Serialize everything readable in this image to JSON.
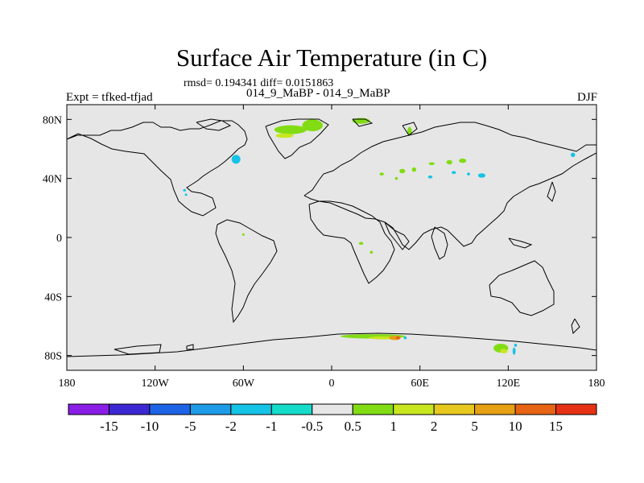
{
  "title": "Surface Air Temperature (in C)",
  "stats_text": "rmsd= 0.194341 diff= 0.0151863",
  "case_text": "014_9_MaBP - 014_9_MaBP",
  "expt_text": "Expt = tfked-tfjad",
  "season_text": "DJF",
  "chart_data": {
    "type": "heatmap",
    "projection": "cylindrical-equidistant",
    "xlim": [
      -180,
      180
    ],
    "ylim": [
      -90,
      90
    ],
    "x_ticks": [
      {
        "value": -180,
        "label": "180"
      },
      {
        "value": -120,
        "label": "120W"
      },
      {
        "value": -60,
        "label": "60W"
      },
      {
        "value": 0,
        "label": "0"
      },
      {
        "value": 60,
        "label": "60E"
      },
      {
        "value": 120,
        "label": "120E"
      },
      {
        "value": 180,
        "label": "180"
      }
    ],
    "y_ticks": [
      {
        "value": 80,
        "label": "80N"
      },
      {
        "value": 40,
        "label": "40N"
      },
      {
        "value": 0,
        "label": "0"
      },
      {
        "value": -40,
        "label": "40S"
      },
      {
        "value": -80,
        "label": "80S"
      }
    ],
    "background_color": "#e6e6e6",
    "colorbar": {
      "colors": [
        "#8a1ee6",
        "#3c28d2",
        "#1e64e6",
        "#1e9be6",
        "#14c3e6",
        "#14dcc8",
        "#e6e6e6",
        "#82dc14",
        "#c8e61e",
        "#e6c81e",
        "#e6a014",
        "#e66414",
        "#e63214"
      ],
      "labels": [
        "-15",
        "-10",
        "-5",
        "-2",
        "-1",
        "-0.5",
        "0.5",
        "1",
        "2",
        "5",
        "10",
        "15"
      ]
    },
    "anomalies": [
      {
        "lon": -28,
        "lat": 73,
        "w": 22,
        "h": 6,
        "color": "#82dc14"
      },
      {
        "lon": -13,
        "lat": 76,
        "w": 14,
        "h": 8,
        "color": "#82dc14"
      },
      {
        "lon": -32,
        "lat": 69,
        "w": 12,
        "h": 3,
        "color": "#c8e61e"
      },
      {
        "lon": 20,
        "lat": 79,
        "w": 12,
        "h": 4,
        "color": "#82dc14"
      },
      {
        "lon": 53,
        "lat": 72,
        "w": 3,
        "h": 6,
        "color": "#82dc14"
      },
      {
        "lon": -65,
        "lat": 53,
        "w": 6,
        "h": 6,
        "color": "#14c3e6"
      },
      {
        "lon": 89,
        "lat": 52,
        "w": 5,
        "h": 3,
        "color": "#82dc14"
      },
      {
        "lon": 80,
        "lat": 51,
        "w": 4,
        "h": 3,
        "color": "#82dc14"
      },
      {
        "lon": 68,
        "lat": 50,
        "w": 4,
        "h": 2,
        "color": "#82dc14"
      },
      {
        "lon": 56,
        "lat": 46,
        "w": 3,
        "h": 3,
        "color": "#82dc14"
      },
      {
        "lon": 48,
        "lat": 45,
        "w": 4,
        "h": 3,
        "color": "#82dc14"
      },
      {
        "lon": 34,
        "lat": 43,
        "w": 3,
        "h": 2,
        "color": "#82dc14"
      },
      {
        "lon": 44,
        "lat": 40,
        "w": 2,
        "h": 2,
        "color": "#82dc14"
      },
      {
        "lon": 67,
        "lat": 41,
        "w": 3,
        "h": 2,
        "color": "#14c3e6"
      },
      {
        "lon": 83,
        "lat": 44,
        "w": 3,
        "h": 2,
        "color": "#14c3e6"
      },
      {
        "lon": 93,
        "lat": 43,
        "w": 2,
        "h": 2,
        "color": "#14c3e6"
      },
      {
        "lon": 102,
        "lat": 42,
        "w": 5,
        "h": 3,
        "color": "#14c3e6"
      },
      {
        "lon": 164,
        "lat": 56,
        "w": 3,
        "h": 3,
        "color": "#14c3e6"
      },
      {
        "lon": -100,
        "lat": 32,
        "w": 2,
        "h": 1,
        "color": "#14c3e6"
      },
      {
        "lon": -99,
        "lat": 29,
        "w": 1,
        "h": 1,
        "color": "#14c3e6"
      },
      {
        "lon": -60,
        "lat": 2,
        "w": 1,
        "h": 1,
        "color": "#82dc14"
      },
      {
        "lon": 20,
        "lat": -4,
        "w": 3,
        "h": 2,
        "color": "#82dc14"
      },
      {
        "lon": 27,
        "lat": -10,
        "w": 2,
        "h": 2,
        "color": "#82dc14"
      },
      {
        "lon": 28,
        "lat": -67,
        "w": 44,
        "h": 3,
        "color": "#82dc14"
      },
      {
        "lon": 35,
        "lat": -68,
        "w": 20,
        "h": 2,
        "color": "#c8e61e"
      },
      {
        "lon": 43,
        "lat": -68,
        "w": 8,
        "h": 3,
        "color": "#e6a014"
      },
      {
        "lon": 45,
        "lat": -68,
        "w": 3,
        "h": 2,
        "color": "#e66414"
      },
      {
        "lon": 50,
        "lat": -68,
        "w": 2,
        "h": 2,
        "color": "#14c3e6"
      },
      {
        "lon": 115,
        "lat": -75,
        "w": 10,
        "h": 6,
        "color": "#82dc14"
      },
      {
        "lon": 117,
        "lat": -77,
        "w": 5,
        "h": 3,
        "color": "#c8e61e"
      },
      {
        "lon": 124,
        "lat": -77,
        "w": 2,
        "h": 5,
        "color": "#14c3e6"
      },
      {
        "lon": 125,
        "lat": -73,
        "w": 2,
        "h": 2,
        "color": "#14c3e6"
      }
    ]
  }
}
